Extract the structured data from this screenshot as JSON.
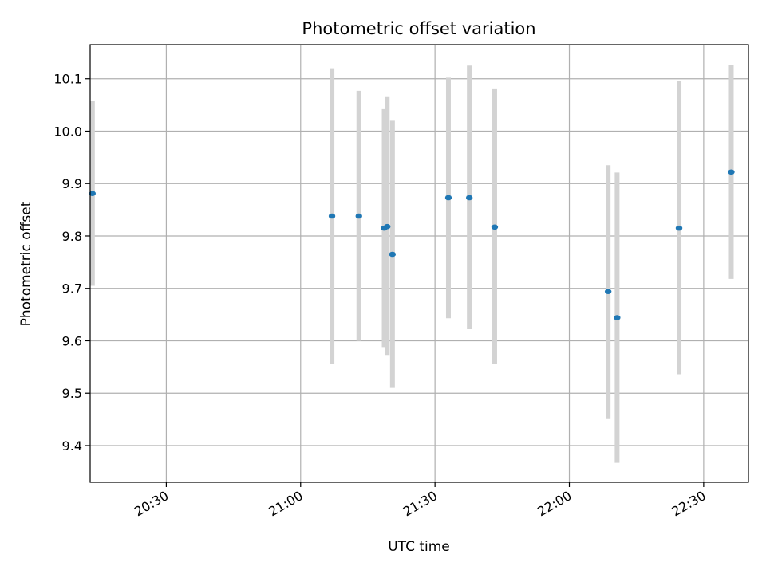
{
  "chart_data": {
    "type": "scatter",
    "title": "Photometric offset variation",
    "xlabel": "UTC time",
    "ylabel": "Photometric offset",
    "x_axis": {
      "kind": "time",
      "range": [
        "20:13",
        "22:40"
      ],
      "ticks": [
        "20:30",
        "21:00",
        "21:30",
        "22:00",
        "22:30"
      ]
    },
    "ylim": [
      9.33,
      10.165
    ],
    "yticks": [
      9.4,
      9.5,
      9.6,
      9.7,
      9.8,
      9.9,
      10.0,
      10.1
    ],
    "ytick_labels": [
      "9.4",
      "9.5",
      "9.6",
      "9.7",
      "9.8",
      "9.9",
      "10.0",
      "10.1"
    ],
    "grid": true,
    "colors": {
      "marker": "#1f77b4",
      "errorbar": "#d3d3d3",
      "grid": "#b0b0b0"
    },
    "points": [
      {
        "x": "20:13:30",
        "y": 9.881,
        "yerr_low": 9.705,
        "yerr_high": 10.057
      },
      {
        "x": "21:07:00",
        "y": 9.838,
        "yerr_low": 9.556,
        "yerr_high": 10.12
      },
      {
        "x": "21:13:00",
        "y": 9.838,
        "yerr_low": 9.6,
        "yerr_high": 10.077
      },
      {
        "x": "21:18:40",
        "y": 9.815,
        "yerr_low": 9.588,
        "yerr_high": 10.042
      },
      {
        "x": "21:19:20",
        "y": 9.818,
        "yerr_low": 9.573,
        "yerr_high": 10.065
      },
      {
        "x": "21:20:30",
        "y": 9.765,
        "yerr_low": 9.51,
        "yerr_high": 10.02
      },
      {
        "x": "21:33:00",
        "y": 9.873,
        "yerr_low": 9.643,
        "yerr_high": 10.102
      },
      {
        "x": "21:37:40",
        "y": 9.873,
        "yerr_low": 9.622,
        "yerr_high": 10.125
      },
      {
        "x": "21:43:20",
        "y": 9.817,
        "yerr_low": 9.556,
        "yerr_high": 10.08
      },
      {
        "x": "22:08:40",
        "y": 9.694,
        "yerr_low": 9.452,
        "yerr_high": 9.935
      },
      {
        "x": "22:10:40",
        "y": 9.644,
        "yerr_low": 9.367,
        "yerr_high": 9.921
      },
      {
        "x": "22:24:30",
        "y": 9.815,
        "yerr_low": 9.536,
        "yerr_high": 10.095
      },
      {
        "x": "22:36:10",
        "y": 9.922,
        "yerr_low": 9.718,
        "yerr_high": 10.126
      }
    ]
  }
}
